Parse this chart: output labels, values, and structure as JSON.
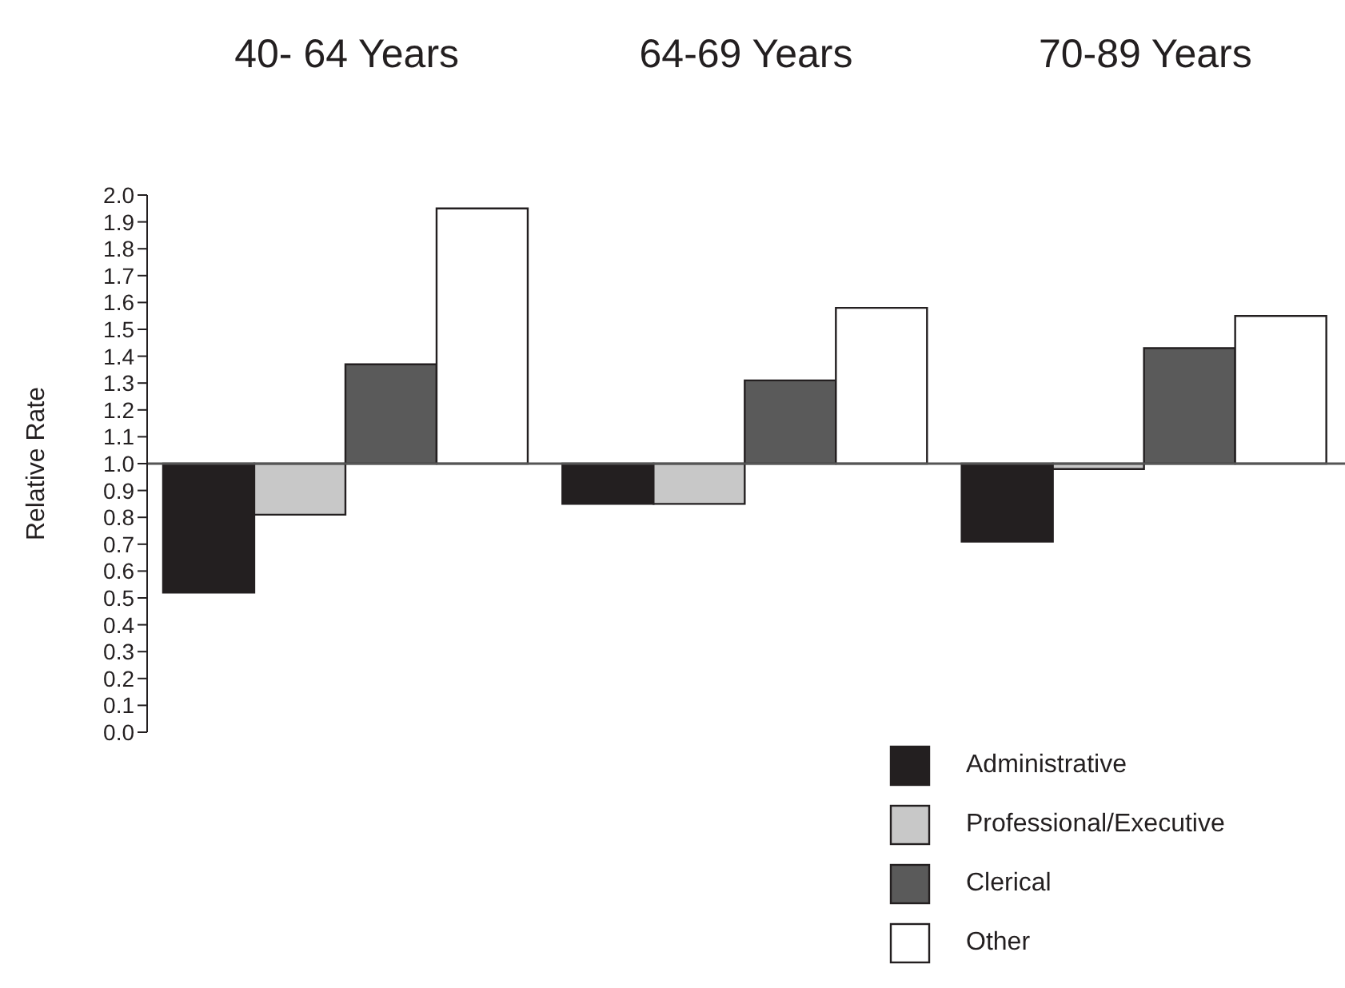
{
  "chart_data": {
    "type": "bar",
    "categories": [
      "40- 64 Years",
      "64-69 Years",
      "70-89 Years"
    ],
    "ylabel": "Relative Rate",
    "ylim": [
      0,
      2.0
    ],
    "yticks": [
      {
        "value": 0,
        "label": "0.0"
      },
      {
        "value": 0.1,
        "label": "0.1"
      },
      {
        "value": 0.2,
        "label": "0.2"
      },
      {
        "value": 0.3,
        "label": "0.3"
      },
      {
        "value": 0.4,
        "label": "0.4"
      },
      {
        "value": 0.5,
        "label": "0.5"
      },
      {
        "value": 0.6,
        "label": "0.6"
      },
      {
        "value": 0.7,
        "label": "0.7"
      },
      {
        "value": 0.8,
        "label": "0.8"
      },
      {
        "value": 0.9,
        "label": "0.9"
      },
      {
        "value": 1.0,
        "label": "1.0"
      },
      {
        "value": 1.1,
        "label": "1.1"
      },
      {
        "value": 1.2,
        "label": "1.2"
      },
      {
        "value": 1.3,
        "label": "1.3"
      },
      {
        "value": 1.4,
        "label": "1.4"
      },
      {
        "value": 1.5,
        "label": "1.5"
      },
      {
        "value": 1.6,
        "label": "1.6"
      },
      {
        "value": 1.7,
        "label": "1.7"
      },
      {
        "value": 1.8,
        "label": "1.8"
      },
      {
        "value": 1.9,
        "label": "1.9"
      },
      {
        "value": 2.0,
        "label": "2.0"
      }
    ],
    "series": [
      {
        "name": "Administrative",
        "color": "#231f20",
        "base": [
          1.0,
          1.0,
          1.0
        ],
        "values": [
          -0.48,
          -0.15,
          -0.29
        ]
      },
      {
        "name": "Professional/Executive",
        "color": "#c8c8c8",
        "base": [
          1.0,
          1.0,
          1.0
        ],
        "values": [
          -0.19,
          -0.15,
          -0.02
        ]
      },
      {
        "name": "Clerical",
        "color": "#5a5a5a",
        "base": [
          1.0,
          1.0,
          1.0
        ],
        "values": [
          0.37,
          0.31,
          0.43
        ]
      },
      {
        "name": "Other",
        "color": "#ffffff",
        "base": [
          1.0,
          1.0,
          1.0
        ],
        "values": [
          0.95,
          0.58,
          0.55
        ]
      }
    ],
    "ref_lines": [
      {
        "axis": "y",
        "value": 1.0,
        "color": "#555555"
      }
    ],
    "legend": "bottom right",
    "grid": false
  }
}
